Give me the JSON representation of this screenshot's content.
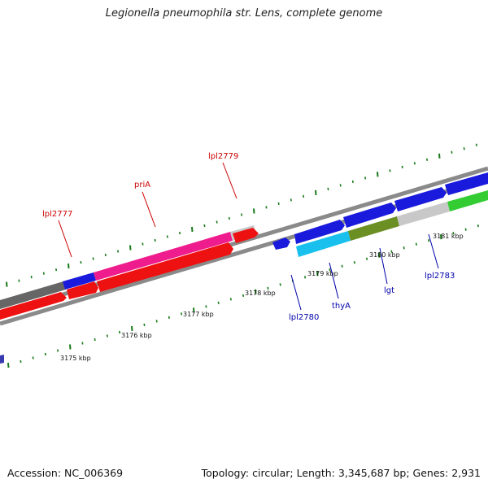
{
  "header": {
    "title": "Legionella pneumophila str. Lens, complete genome"
  },
  "footer": {
    "accession": "Accession: NC_006369",
    "summary": "Topology: circular; Length: 3,345,687 bp; Genes: 2,931"
  },
  "colors": {
    "forward_label": "#cc0000",
    "reverse_label": "#0000aa",
    "tick": "#1a7a1a",
    "backbone": "#888888"
  },
  "map": {
    "kbp_labels": [
      {
        "text": "3175 kbp",
        "kbp": 3175
      },
      {
        "text": "3176 kbp",
        "kbp": 3176
      },
      {
        "text": "3177 kbp",
        "kbp": 3177
      },
      {
        "text": "3178 kbp",
        "kbp": 3178
      },
      {
        "text": "3179 kbp",
        "kbp": 3179
      },
      {
        "text": "3180 kbp",
        "kbp": 3180
      },
      {
        "text": "3181 kbp",
        "kbp": 3181
      }
    ],
    "gene_labels_forward": [
      {
        "text": "lpl2777",
        "color": "#cc0000"
      },
      {
        "text": "priA",
        "color": "#cc0000"
      },
      {
        "text": "lpl2779",
        "color": "#cc0000"
      }
    ],
    "gene_labels_reverse": [
      {
        "text": "lpl2780",
        "color": "#0000aa"
      },
      {
        "text": "thyA",
        "color": "#0000aa"
      },
      {
        "text": "lgt",
        "color": "#0000aa"
      },
      {
        "text": "lpl2783",
        "color": "#0000aa"
      }
    ]
  }
}
